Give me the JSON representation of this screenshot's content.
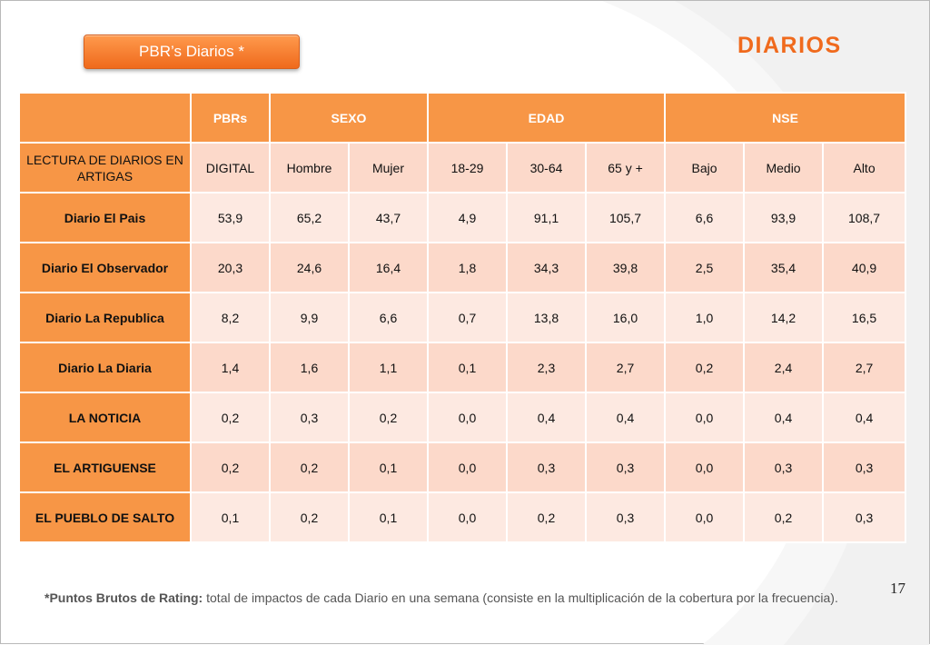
{
  "badge": {
    "label": "PBR’s Diarios  *"
  },
  "title": "DIARIOS",
  "table": {
    "header": {
      "group0": "",
      "pbrs": "PBRs",
      "sexo": "SEXO",
      "edad": "EDAD",
      "nse": "NSE"
    },
    "subheader": [
      "LECTURA DE DIARIOS EN ARTIGAS",
      "DIGITAL",
      "Hombre",
      "Mujer",
      "18-29",
      "30-64",
      "65 y +",
      "Bajo",
      "Medio",
      "Alto"
    ],
    "rows": [
      {
        "label": "Diario El Pais",
        "values": [
          "53,9",
          "65,2",
          "43,7",
          "4,9",
          "91,1",
          "105,7",
          "6,6",
          "93,9",
          "108,7"
        ]
      },
      {
        "label": "Diario El Observador",
        "values": [
          "20,3",
          "24,6",
          "16,4",
          "1,8",
          "34,3",
          "39,8",
          "2,5",
          "35,4",
          "40,9"
        ]
      },
      {
        "label": "Diario La Republica",
        "values": [
          "8,2",
          "9,9",
          "6,6",
          "0,7",
          "13,8",
          "16,0",
          "1,0",
          "14,2",
          "16,5"
        ]
      },
      {
        "label": "Diario La Diaria",
        "values": [
          "1,4",
          "1,6",
          "1,1",
          "0,1",
          "2,3",
          "2,7",
          "0,2",
          "2,4",
          "2,7"
        ]
      },
      {
        "label": "LA NOTICIA",
        "values": [
          "0,2",
          "0,3",
          "0,2",
          "0,0",
          "0,4",
          "0,4",
          "0,0",
          "0,4",
          "0,4"
        ]
      },
      {
        "label": "EL ARTIGUENSE",
        "values": [
          "0,2",
          "0,2",
          "0,1",
          "0,0",
          "0,3",
          "0,3",
          "0,0",
          "0,3",
          "0,3"
        ]
      },
      {
        "label": "EL PUEBLO DE SALTO",
        "values": [
          "0,1",
          "0,2",
          "0,1",
          "0,0",
          "0,2",
          "0,3",
          "0,0",
          "0,2",
          "0,3"
        ]
      }
    ]
  },
  "page_number": "17",
  "footnote": {
    "term": "*Puntos Brutos de Rating:",
    "text": " total de impactos de cada Diario en una semana (consiste en la multiplicación de la cobertura por la frecuencia)."
  },
  "colors": {
    "accent": "#f79646",
    "title": "#f06a1d",
    "cell_dark": "#fcd9ca",
    "cell_light": "#fde9e1"
  }
}
